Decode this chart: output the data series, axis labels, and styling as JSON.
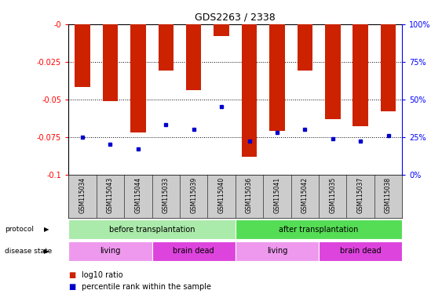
{
  "title": "GDS2263 / 2338",
  "samples": [
    "GSM115034",
    "GSM115043",
    "GSM115044",
    "GSM115033",
    "GSM115039",
    "GSM115040",
    "GSM115036",
    "GSM115041",
    "GSM115042",
    "GSM115035",
    "GSM115037",
    "GSM115038"
  ],
  "log10_ratio": [
    -0.042,
    -0.051,
    -0.072,
    -0.031,
    -0.044,
    -0.008,
    -0.088,
    -0.071,
    -0.031,
    -0.063,
    -0.068,
    -0.058
  ],
  "percentile_rank": [
    0.25,
    0.2,
    0.17,
    0.33,
    0.3,
    0.45,
    0.22,
    0.28,
    0.3,
    0.24,
    0.22,
    0.26
  ],
  "bar_color": "#cc2200",
  "marker_color": "#0000cc",
  "ylim_left": [
    -0.1,
    0.0
  ],
  "yticks_left": [
    0.0,
    -0.025,
    -0.05,
    -0.075,
    -0.1
  ],
  "ytick_labels_left": [
    "-0",
    "-0.025",
    "-0.05",
    "-0.075",
    "-0.1"
  ],
  "yticks_right_vals": [
    0.0,
    0.25,
    0.5,
    0.75,
    1.0
  ],
  "ytick_labels_right": [
    "0%",
    "25%",
    "50%",
    "75%",
    "100%"
  ],
  "protocol_before": {
    "label": "before transplantation",
    "color": "#aaeaaa",
    "start": 0,
    "end": 6
  },
  "protocol_after": {
    "label": "after transplantation",
    "color": "#55dd55",
    "start": 6,
    "end": 12
  },
  "disease_living1": {
    "label": "living",
    "color": "#ee99ee",
    "start": 0,
    "end": 3
  },
  "disease_braindead1": {
    "label": "brain dead",
    "color": "#dd44dd",
    "start": 3,
    "end": 6
  },
  "disease_living2": {
    "label": "living",
    "color": "#ee99ee",
    "start": 6,
    "end": 9
  },
  "disease_braindead2": {
    "label": "brain dead",
    "color": "#dd44dd",
    "start": 9,
    "end": 12
  },
  "background_color": "#ffffff",
  "tick_area_color": "#cccccc"
}
